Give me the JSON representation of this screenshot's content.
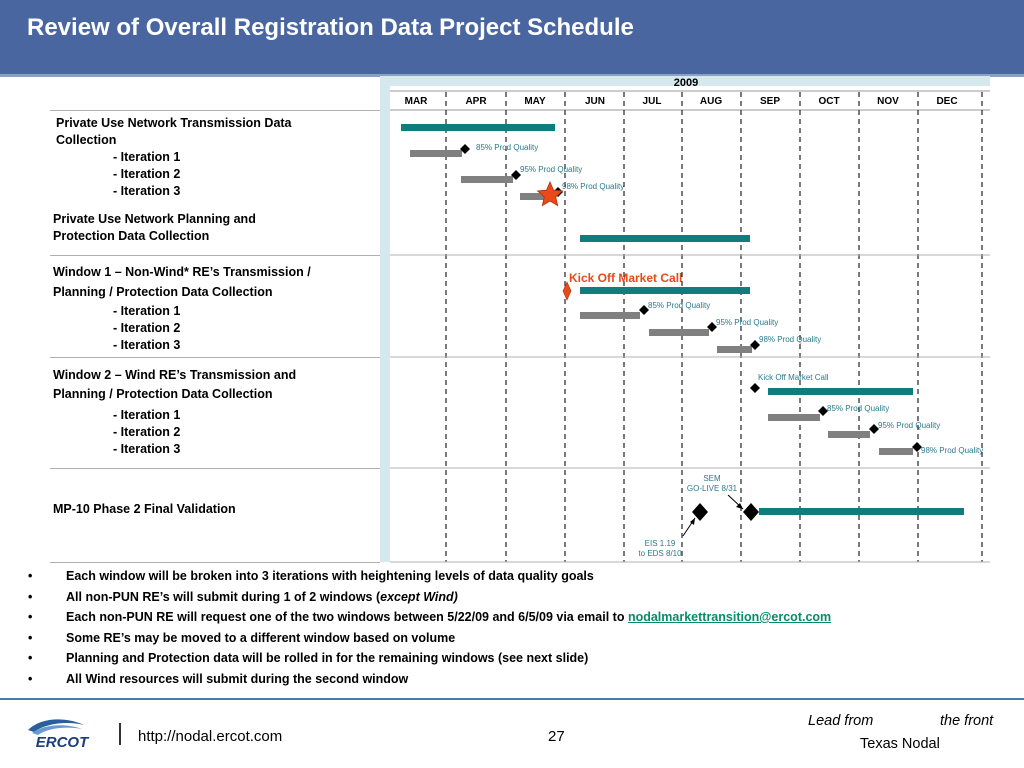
{
  "header": {
    "title": "Review of Overall Registration Data Project Schedule"
  },
  "schedule": {
    "year": "2009",
    "months": [
      "MAR",
      "APR",
      "MAY",
      "JUN",
      "JUL",
      "AUG",
      "SEP",
      "OCT",
      "NOV",
      "DEC"
    ],
    "tasks": [
      {
        "title_lines": [
          "Private Use Network Transmission Data",
          "Collection"
        ],
        "iterations": [
          "- Iteration 1",
          "- Iteration 2",
          "- Iteration 3"
        ]
      },
      {
        "title_lines": [
          "Private Use Network Planning and",
          "Protection Data Collection"
        ],
        "iterations": []
      },
      {
        "title_lines": [
          "Window 1 –  Non-Wind* RE’s Transmission /",
          "Planning / Protection Data Collection"
        ],
        "iterations": [
          "- Iteration 1",
          "- Iteration 2",
          "- Iteration 3"
        ]
      },
      {
        "title_lines": [
          "Window 2 –  Wind RE’s Transmission and",
          "Planning / Protection Data Collection"
        ],
        "iterations": [
          "- Iteration 1",
          "- Iteration 2",
          "- Iteration 3"
        ]
      },
      {
        "title_lines": [
          "MP-10 Phase 2 Final Validation"
        ],
        "iterations": []
      }
    ],
    "annotations": {
      "q85": "85% Prod Quality",
      "q95": "95% Prod Quality",
      "q98": "98% Prod Quality",
      "kickoff_big": "Kick Off Market Call",
      "kickoff_small": "Kick Off Market Call",
      "sem_line1": "SEM",
      "sem_line2": "GO-LIVE 8/31",
      "eis_line1": "EIS 1.19",
      "eis_line2": "to EDS 8/10"
    },
    "colors": {
      "summary_bar": "#0f7d7d",
      "iteration_bar": "#808080",
      "panel": "#d4e8ee",
      "annotation": "#2a7a8a",
      "kickoff": "#e84a1a"
    }
  },
  "bullets": {
    "symbol": "•",
    "items": [
      {
        "text": "Each window will be broken into 3 iterations with heightening levels of data quality goals"
      },
      {
        "text": "All non-PUN RE’s will submit during 1 of 2 windows (",
        "italic": "except Wind)"
      },
      {
        "text": "Each non-PUN RE will request one of the two windows between 5/22/09 and 6/5/09 via email to ",
        "link": "nodalmarkettransition@ercot.com"
      },
      {
        "text": "Some RE’s may be moved to a different window based on volume"
      },
      {
        "text": "Planning and Protection data will be rolled in for the remaining windows (see next slide)"
      },
      {
        "text": "All Wind resources will submit during the second window"
      }
    ]
  },
  "footer": {
    "logo_text": "ERCOT",
    "url": "http://nodal.ercot.com",
    "page": "27",
    "tagline_left": "Lead from",
    "tagline_right": "the front",
    "tagline_bottom": "Texas Nodal"
  }
}
